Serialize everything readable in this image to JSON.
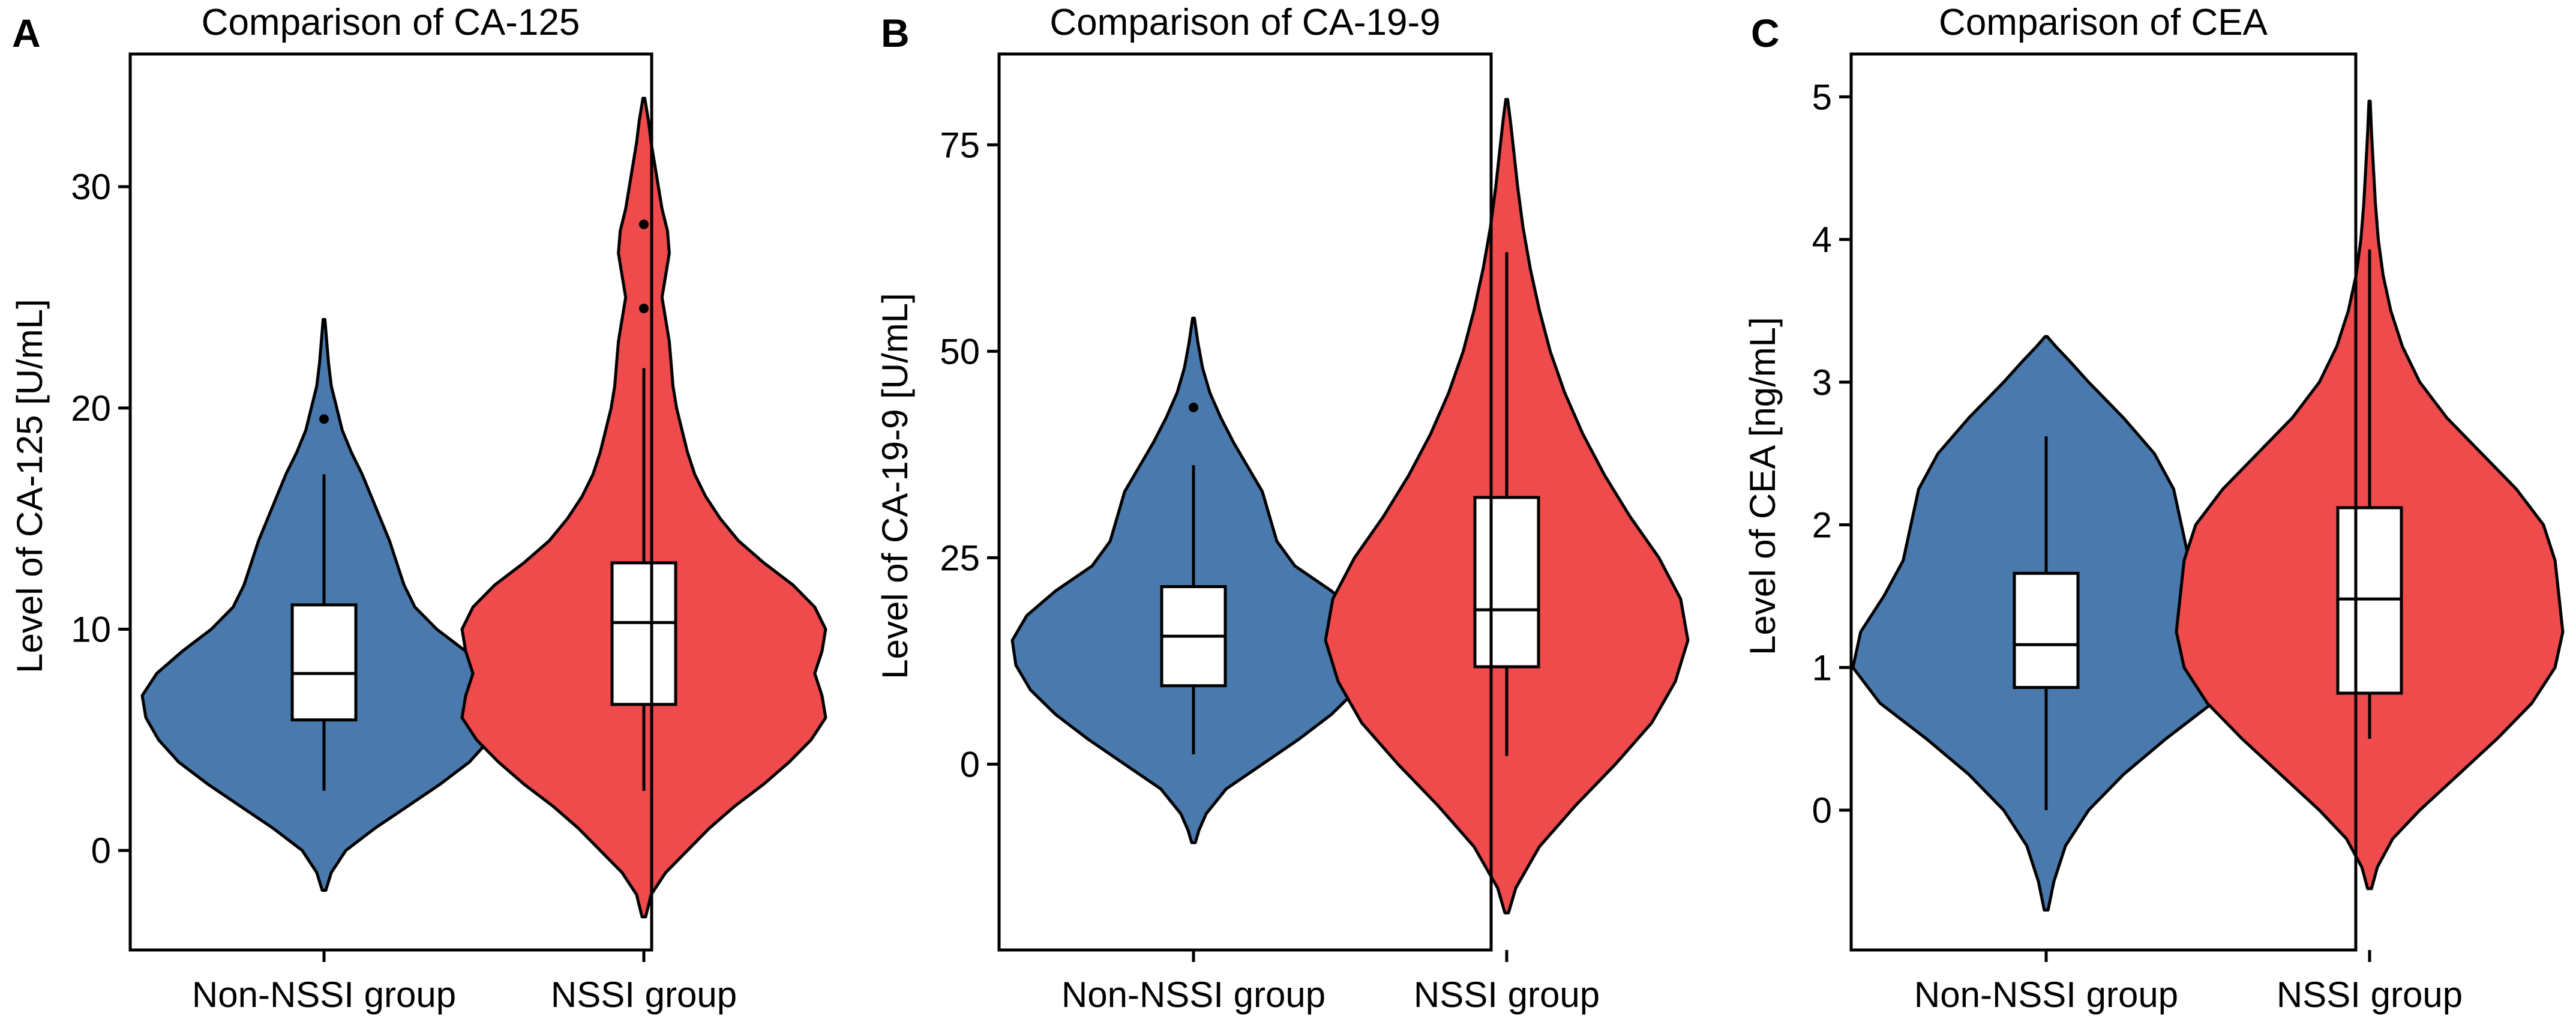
{
  "colors": {
    "non_nssi": "#4a7aad",
    "nssi": "#ef4b4d",
    "frame": "#000000",
    "box_fill": "#ffffff"
  },
  "chart_data": [
    {
      "type": "violin",
      "panel": "A",
      "title": "Comparison of CA-125",
      "xlabel": "",
      "ylabel": "Level of CA-125 [U/mL]",
      "categories": [
        "Non-NSSI group",
        "NSSI group"
      ],
      "ylim": [
        -4.5,
        36
      ],
      "yticks": [
        0,
        10,
        20,
        30
      ],
      "ytick_labels": [
        "0",
        "10",
        "20",
        "30"
      ],
      "grid": false,
      "series": [
        {
          "name": "Non-NSSI group",
          "color": "#4a7aad",
          "density": [
            [
              -1.8,
              0.01
            ],
            [
              -1.0,
              0.04
            ],
            [
              0.0,
              0.12
            ],
            [
              1.0,
              0.28
            ],
            [
              2.0,
              0.46
            ],
            [
              3.0,
              0.64
            ],
            [
              4.0,
              0.8
            ],
            [
              5.0,
              0.91
            ],
            [
              6.0,
              0.98
            ],
            [
              7.0,
              1.0
            ],
            [
              8.0,
              0.92
            ],
            [
              9.0,
              0.78
            ],
            [
              10.0,
              0.62
            ],
            [
              11.0,
              0.5
            ],
            [
              12.0,
              0.44
            ],
            [
              13.0,
              0.4
            ],
            [
              14.0,
              0.36
            ],
            [
              15.0,
              0.31
            ],
            [
              16.0,
              0.26
            ],
            [
              17.0,
              0.21
            ],
            [
              18.0,
              0.15
            ],
            [
              19.0,
              0.1
            ],
            [
              20.0,
              0.07
            ],
            [
              21.0,
              0.04
            ],
            [
              22.0,
              0.025
            ],
            [
              23.0,
              0.015
            ],
            [
              24.0,
              0.005
            ]
          ],
          "box": {
            "whisker_low": 2.7,
            "q1": 5.9,
            "median": 8.0,
            "q3": 11.1,
            "whisker_high": 17.0
          },
          "outliers": [
            19.5
          ]
        },
        {
          "name": "NSSI group",
          "color": "#ef4b4d",
          "density": [
            [
              -3.0,
              0.01
            ],
            [
              -2.0,
              0.04
            ],
            [
              -1.0,
              0.12
            ],
            [
              0.0,
              0.24
            ],
            [
              1.0,
              0.36
            ],
            [
              2.0,
              0.5
            ],
            [
              3.0,
              0.66
            ],
            [
              4.0,
              0.8
            ],
            [
              5.0,
              0.92
            ],
            [
              6.0,
              1.0
            ],
            [
              7.0,
              0.98
            ],
            [
              8.0,
              0.94
            ],
            [
              9.0,
              0.98
            ],
            [
              10.0,
              1.0
            ],
            [
              11.0,
              0.94
            ],
            [
              12.0,
              0.82
            ],
            [
              13.0,
              0.66
            ],
            [
              14.0,
              0.52
            ],
            [
              15.0,
              0.42
            ],
            [
              16.0,
              0.34
            ],
            [
              17.0,
              0.28
            ],
            [
              18.0,
              0.24
            ],
            [
              19.0,
              0.21
            ],
            [
              20.0,
              0.18
            ],
            [
              21.0,
              0.16
            ],
            [
              22.0,
              0.15
            ],
            [
              23.0,
              0.14
            ],
            [
              24.0,
              0.12
            ],
            [
              25.0,
              0.1
            ],
            [
              26.0,
              0.12
            ],
            [
              27.0,
              0.14
            ],
            [
              28.0,
              0.13
            ],
            [
              29.0,
              0.1
            ],
            [
              30.0,
              0.08
            ],
            [
              31.0,
              0.06
            ],
            [
              32.0,
              0.04
            ],
            [
              33.0,
              0.025
            ],
            [
              34.0,
              0.005
            ]
          ],
          "box": {
            "whisker_low": 2.7,
            "q1": 6.6,
            "median": 10.3,
            "q3": 13.0,
            "whisker_high": 21.8
          },
          "outliers": [
            24.5,
            28.3
          ]
        }
      ]
    },
    {
      "type": "violin",
      "panel": "B",
      "title": "Comparison of CA-19-9",
      "xlabel": "",
      "ylabel": "Level of CA-19-9 [U/mL]",
      "categories": [
        "Non-NSSI group",
        "NSSI group"
      ],
      "ylim": [
        -22.5,
        86
      ],
      "yticks": [
        0,
        25,
        50,
        75
      ],
      "ytick_labels": [
        "0",
        "25",
        "50",
        "75"
      ],
      "grid": false,
      "series": [
        {
          "name": "Non-NSSI group",
          "color": "#4a7aad",
          "density": [
            [
              -9.5,
              0.01
            ],
            [
              -8.0,
              0.03
            ],
            [
              -6.0,
              0.07
            ],
            [
              -3.0,
              0.18
            ],
            [
              0.0,
              0.38
            ],
            [
              3.0,
              0.58
            ],
            [
              6.0,
              0.76
            ],
            [
              9.0,
              0.9
            ],
            [
              12.0,
              0.98
            ],
            [
              15.0,
              1.0
            ],
            [
              18.0,
              0.92
            ],
            [
              21.0,
              0.76
            ],
            [
              24.0,
              0.56
            ],
            [
              27.0,
              0.46
            ],
            [
              30.0,
              0.42
            ],
            [
              33.0,
              0.38
            ],
            [
              36.0,
              0.3
            ],
            [
              39.0,
              0.22
            ],
            [
              42.0,
              0.15
            ],
            [
              45.0,
              0.09
            ],
            [
              48.0,
              0.05
            ],
            [
              51.0,
              0.025
            ],
            [
              54.0,
              0.005
            ]
          ],
          "box": {
            "whisker_low": 1.2,
            "q1": 9.5,
            "median": 15.5,
            "q3": 21.5,
            "whisker_high": 36.2
          },
          "outliers": [
            43.2
          ]
        },
        {
          "name": "NSSI group",
          "color": "#ef4b4d",
          "density": [
            [
              -18.0,
              0.01
            ],
            [
              -15.0,
              0.05
            ],
            [
              -10.0,
              0.18
            ],
            [
              -5.0,
              0.38
            ],
            [
              0.0,
              0.6
            ],
            [
              5.0,
              0.8
            ],
            [
              10.0,
              0.93
            ],
            [
              15.0,
              1.0
            ],
            [
              20.0,
              0.96
            ],
            [
              25.0,
              0.84
            ],
            [
              30.0,
              0.68
            ],
            [
              35.0,
              0.54
            ],
            [
              40.0,
              0.42
            ],
            [
              45.0,
              0.32
            ],
            [
              50.0,
              0.24
            ],
            [
              55.0,
              0.18
            ],
            [
              60.0,
              0.13
            ],
            [
              65.0,
              0.09
            ],
            [
              70.0,
              0.06
            ],
            [
              75.0,
              0.035
            ],
            [
              78.0,
              0.02
            ],
            [
              80.5,
              0.005
            ]
          ],
          "box": {
            "whisker_low": 1.0,
            "q1": 11.8,
            "median": 18.7,
            "q3": 32.3,
            "whisker_high": 62.0
          },
          "outliers": []
        }
      ]
    },
    {
      "type": "violin",
      "panel": "C",
      "title": "Comparison of CEA",
      "xlabel": "",
      "ylabel": "Level of CEA [ng/mL]",
      "categories": [
        "Non-NSSI group",
        "NSSI group"
      ],
      "ylim": [
        -0.98,
        5.3
      ],
      "yticks": [
        0,
        1,
        2,
        3,
        4,
        5
      ],
      "ytick_labels": [
        "0",
        "1",
        "2",
        "3",
        "4",
        "5"
      ],
      "grid": false,
      "series": [
        {
          "name": "Non-NSSI group",
          "color": "#4a7aad",
          "density": [
            [
              -0.7,
              0.01
            ],
            [
              -0.5,
              0.04
            ],
            [
              -0.25,
              0.1
            ],
            [
              0.0,
              0.22
            ],
            [
              0.25,
              0.4
            ],
            [
              0.5,
              0.62
            ],
            [
              0.75,
              0.86
            ],
            [
              1.0,
              1.0
            ],
            [
              1.25,
              0.96
            ],
            [
              1.5,
              0.84
            ],
            [
              1.75,
              0.74
            ],
            [
              2.0,
              0.7
            ],
            [
              2.25,
              0.66
            ],
            [
              2.5,
              0.56
            ],
            [
              2.75,
              0.4
            ],
            [
              3.0,
              0.22
            ],
            [
              3.15,
              0.12
            ],
            [
              3.25,
              0.05
            ],
            [
              3.32,
              0.005
            ]
          ],
          "box": {
            "whisker_low": 0.0,
            "q1": 0.86,
            "median": 1.16,
            "q3": 1.66,
            "whisker_high": 2.62
          },
          "outliers": []
        },
        {
          "name": "NSSI group",
          "color": "#ef4b4d",
          "density": [
            [
              -0.55,
              0.01
            ],
            [
              -0.4,
              0.04
            ],
            [
              -0.2,
              0.12
            ],
            [
              0.0,
              0.26
            ],
            [
              0.25,
              0.46
            ],
            [
              0.5,
              0.66
            ],
            [
              0.75,
              0.84
            ],
            [
              1.0,
              0.96
            ],
            [
              1.25,
              1.0
            ],
            [
              1.5,
              0.98
            ],
            [
              1.75,
              0.96
            ],
            [
              2.0,
              0.9
            ],
            [
              2.25,
              0.76
            ],
            [
              2.5,
              0.58
            ],
            [
              2.75,
              0.4
            ],
            [
              3.0,
              0.26
            ],
            [
              3.25,
              0.17
            ],
            [
              3.5,
              0.11
            ],
            [
              3.75,
              0.07
            ],
            [
              4.0,
              0.045
            ],
            [
              4.25,
              0.03
            ],
            [
              4.5,
              0.02
            ],
            [
              4.75,
              0.01
            ],
            [
              4.97,
              0.003
            ]
          ],
          "box": {
            "whisker_low": 0.5,
            "q1": 0.82,
            "median": 1.48,
            "q3": 2.12,
            "whisker_high": 3.93
          },
          "outliers": []
        }
      ]
    }
  ]
}
